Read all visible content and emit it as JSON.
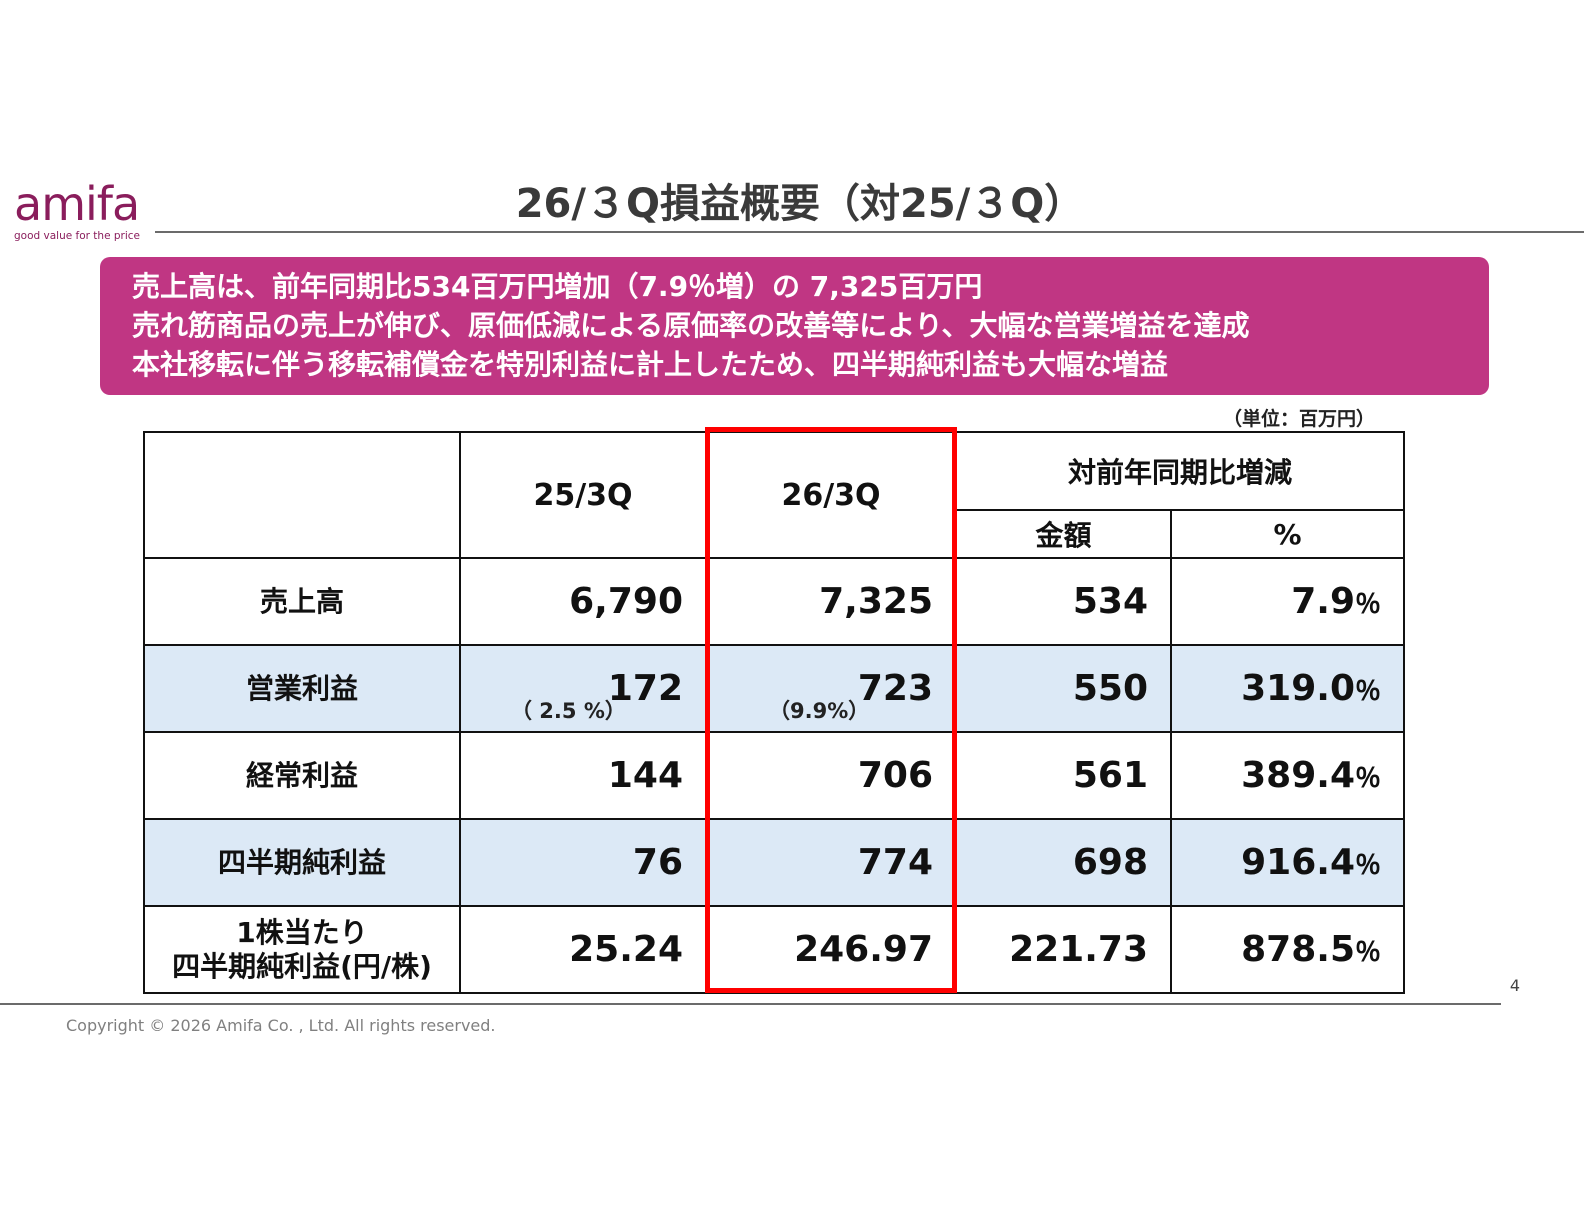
{
  "logo": {
    "name": "amifa",
    "tagline": "good value for the price"
  },
  "title": "26/３Q損益概要（対25/３Q）",
  "summary": {
    "lines": [
      "売上高は、前年同期比534百万円増加（7.9％増）の 7,325百万円",
      "売れ筋商品の売上が伸び、原価低減による原価率の改善等により、大幅な営業増益を達成",
      "本社移転に伴う移転補償金を特別利益に計上したため、四半期純利益も大幅な増益"
    ],
    "background": "#c03683"
  },
  "unit_note": "（単位：百万円）",
  "table": {
    "headers": {
      "prev": "25/3Q",
      "curr": "26/3Q",
      "yoy": "対前年同期比増減",
      "amount": "金額",
      "pct": "%"
    },
    "rows": [
      {
        "label": "売上高",
        "prev": "6,790",
        "curr": "7,325",
        "amount": "534",
        "pct": "7.9",
        "pct_unit": "％"
      },
      {
        "label": "営業利益",
        "prev": "172",
        "curr": "723",
        "amount": "550",
        "pct": "319.0",
        "pct_unit": "％",
        "prev_margin": "（ 2.5 %）",
        "curr_margin": "（9.9%）"
      },
      {
        "label": "経常利益",
        "prev": "144",
        "curr": "706",
        "amount": "561",
        "pct": "389.4",
        "pct_unit": "％"
      },
      {
        "label": "四半期純利益",
        "prev": "76",
        "curr": "774",
        "amount": "698",
        "pct": "916.4",
        "pct_unit": "％"
      },
      {
        "label_line1": "1株当たり",
        "label_line2": "四半期純利益(円/株)",
        "prev": "25.24",
        "curr": "246.97",
        "amount": "221.73",
        "pct": "878.5",
        "pct_unit": "％"
      }
    ],
    "shade_color": "#dce9f6",
    "highlight_color": "#ff0000"
  },
  "page_number": "4",
  "copyright": "Copyright © 2026 Amifa Co. , Ltd. All rights reserved."
}
